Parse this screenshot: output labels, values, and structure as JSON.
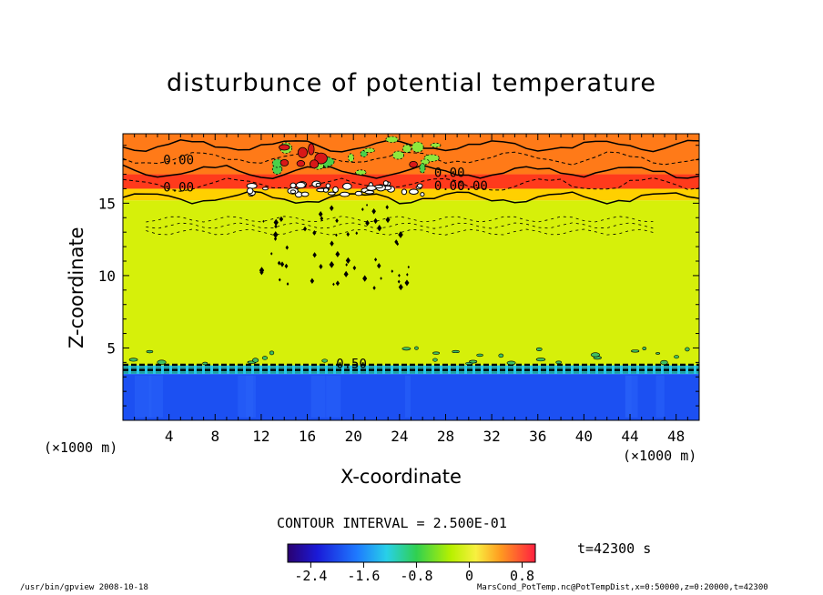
{
  "chart_data": {
    "type": "heatmap",
    "title": "disturbunce of potential temperature",
    "xlabel": "X-coordinate",
    "ylabel": "Z-coordinate",
    "x_unit": "(×1000 m)",
    "y_unit": "(×1000 m)",
    "xlim": [
      0,
      50
    ],
    "ylim": [
      0,
      19.8
    ],
    "x_ticks": [
      4,
      8,
      12,
      16,
      20,
      24,
      28,
      32,
      36,
      40,
      44,
      48
    ],
    "y_ticks": [
      5,
      10,
      15
    ],
    "contour_labels": [
      "0.00",
      "0.00",
      "0.00",
      "0.00",
      "0.00",
      "0.50"
    ],
    "layers": [
      {
        "z_range": [
          0,
          3.2
        ],
        "value": -2.6,
        "color": "#1c50f2"
      },
      {
        "z_range": [
          3.2,
          3.8
        ],
        "value": -1.2,
        "color": "#28c8e8"
      },
      {
        "z_range": [
          3.8,
          15.2
        ],
        "value": 0.0,
        "color": "#d6f00a"
      },
      {
        "z_range": [
          15.2,
          16.0
        ],
        "value": 0.5,
        "color": "#ffd000"
      },
      {
        "z_range": [
          16.0,
          17.0
        ],
        "value": 1.0,
        "color": "#ff3a1c"
      },
      {
        "z_range": [
          17.0,
          19.8
        ],
        "value": 0.7,
        "color": "#ff7a18"
      }
    ],
    "contour_interval": "CONTOUR INTERVAL = 2.500E-01",
    "colorbar": {
      "range": [
        -2.75,
        1.0
      ],
      "tick_labels": [
        "-2.4",
        "-1.6",
        "-0.8",
        "0",
        "0.8"
      ],
      "tick_values": [
        -2.4,
        -1.6,
        -0.8,
        0,
        0.8
      ]
    }
  },
  "time_label": "t=42300 s",
  "footer": {
    "left": "/usr/bin/gpview   2008-10-18",
    "right": "MarsCond_PotTemp.nc@PotTempDist,x=0:50000,z=0:20000,t=42300"
  }
}
